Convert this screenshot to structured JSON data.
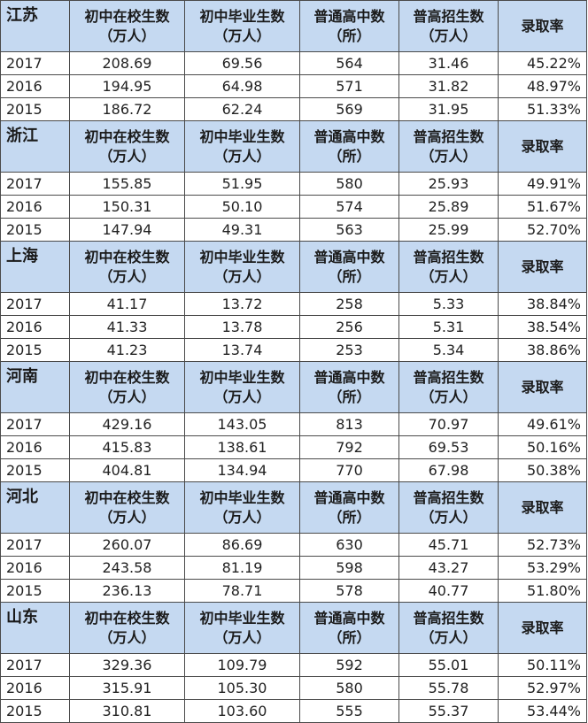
{
  "headers": {
    "col1": [
      "初中在校生数",
      "（万人）"
    ],
    "col2": [
      "初中毕业生数",
      "（万人）"
    ],
    "col3": [
      "普通高中数",
      "（所）"
    ],
    "col4": [
      "普高招生数",
      "（万人）"
    ],
    "col5": "录取率"
  },
  "provinces": [
    {
      "name": "江苏",
      "rows": [
        [
          "2017",
          "208.69",
          "69.56",
          "564",
          "31.46",
          "45.22%"
        ],
        [
          "2016",
          "194.95",
          "64.98",
          "571",
          "31.82",
          "48.97%"
        ],
        [
          "2015",
          "186.72",
          "62.24",
          "569",
          "31.95",
          "51.33%"
        ]
      ]
    },
    {
      "name": "浙江",
      "rows": [
        [
          "2017",
          "155.85",
          "51.95",
          "580",
          "25.93",
          "49.91%"
        ],
        [
          "2016",
          "150.31",
          "50.10",
          "574",
          "25.89",
          "51.67%"
        ],
        [
          "2015",
          "147.94",
          "49.31",
          "563",
          "25.99",
          "52.70%"
        ]
      ]
    },
    {
      "name": "上海",
      "rows": [
        [
          "2017",
          "41.17",
          "13.72",
          "258",
          "5.33",
          "38.84%"
        ],
        [
          "2016",
          "41.33",
          "13.78",
          "256",
          "5.31",
          "38.54%"
        ],
        [
          "2015",
          "41.23",
          "13.74",
          "253",
          "5.34",
          "38.86%"
        ]
      ]
    },
    {
      "name": "河南",
      "rows": [
        [
          "2017",
          "429.16",
          "143.05",
          "813",
          "70.97",
          "49.61%"
        ],
        [
          "2016",
          "415.83",
          "138.61",
          "792",
          "69.53",
          "50.16%"
        ],
        [
          "2015",
          "404.81",
          "134.94",
          "770",
          "67.98",
          "50.38%"
        ]
      ]
    },
    {
      "name": "河北",
      "rows": [
        [
          "2017",
          "260.07",
          "86.69",
          "630",
          "45.71",
          "52.73%"
        ],
        [
          "2016",
          "243.58",
          "81.19",
          "598",
          "43.27",
          "53.29%"
        ],
        [
          "2015",
          "236.13",
          "78.71",
          "578",
          "40.77",
          "51.80%"
        ]
      ]
    },
    {
      "name": "山东",
      "rows": [
        [
          "2017",
          "329.36",
          "109.79",
          "592",
          "55.01",
          "50.11%"
        ],
        [
          "2016",
          "315.91",
          "105.30",
          "580",
          "55.78",
          "52.97%"
        ],
        [
          "2015",
          "310.81",
          "103.60",
          "555",
          "55.37",
          "53.44%"
        ]
      ]
    }
  ],
  "colors": {
    "header_bg": "#c5d9f1",
    "border": "#4a4a4a"
  }
}
